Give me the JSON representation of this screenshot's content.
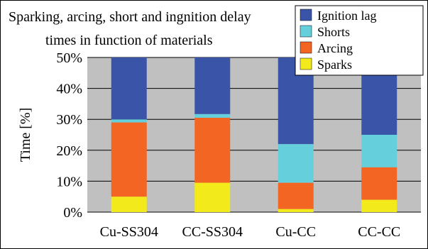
{
  "chart_data": {
    "type": "bar",
    "stacked": true,
    "title_lines": [
      "Sparking, arcing, short and ingnition delay",
      "times in function of materials"
    ],
    "xlabel": "",
    "ylabel": "Time [%]",
    "ylim": [
      0,
      50
    ],
    "yticks": [
      "0%",
      "10%",
      "20%",
      "30%",
      "40%",
      "50%"
    ],
    "ytick_values": [
      0,
      10,
      20,
      30,
      40,
      50
    ],
    "grid": true,
    "legend_position": "top-right",
    "categories": [
      "Cu-SS304",
      "CC-SS304",
      "Cu-CC",
      "CC-CC"
    ],
    "series": [
      {
        "name": "Sparks",
        "color": "#f2ea1b",
        "values": [
          5,
          9.5,
          1,
          4
        ]
      },
      {
        "name": "Arcing",
        "color": "#f26522",
        "values": [
          24,
          21,
          8.5,
          10.5
        ]
      },
      {
        "name": "Shorts",
        "color": "#66cfdc",
        "values": [
          1,
          1.2,
          12.5,
          10.5
        ]
      },
      {
        "name": "Ignition lag",
        "color": "#3a55a7",
        "values": [
          20,
          18.3,
          28,
          25
        ]
      }
    ],
    "legend_order": [
      "Ignition lag",
      "Shorts",
      "Arcing",
      "Sparks"
    ]
  }
}
